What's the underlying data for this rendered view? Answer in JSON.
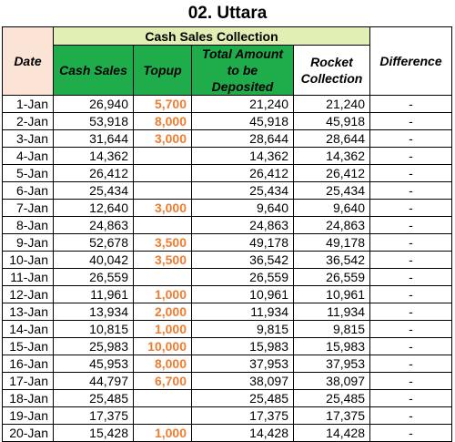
{
  "title": "02. Uttara",
  "headers": {
    "date": "Date",
    "group": "Cash Sales Collection",
    "cash_sales": "Cash Sales",
    "topup": "Topup",
    "total_amount": "Total Amount to be Deposited",
    "rocket": "Rocket Collection",
    "difference": "Difference"
  },
  "rows": [
    {
      "date": "1-Jan",
      "cash_sales": "26,940",
      "topup": "5,700",
      "total": "21,240",
      "rocket": "21,240",
      "diff": "-"
    },
    {
      "date": "2-Jan",
      "cash_sales": "53,918",
      "topup": "8,000",
      "total": "45,918",
      "rocket": "45,918",
      "diff": "-"
    },
    {
      "date": "3-Jan",
      "cash_sales": "31,644",
      "topup": "3,000",
      "total": "28,644",
      "rocket": "28,644",
      "diff": "-"
    },
    {
      "date": "4-Jan",
      "cash_sales": "14,362",
      "topup": "",
      "total": "14,362",
      "rocket": "14,362",
      "diff": "-"
    },
    {
      "date": "5-Jan",
      "cash_sales": "26,412",
      "topup": "",
      "total": "26,412",
      "rocket": "26,412",
      "diff": "-"
    },
    {
      "date": "6-Jan",
      "cash_sales": "25,434",
      "topup": "",
      "total": "25,434",
      "rocket": "25,434",
      "diff": "-"
    },
    {
      "date": "7-Jan",
      "cash_sales": "12,640",
      "topup": "3,000",
      "total": "9,640",
      "rocket": "9,640",
      "diff": "-"
    },
    {
      "date": "8-Jan",
      "cash_sales": "24,863",
      "topup": "",
      "total": "24,863",
      "rocket": "24,863",
      "diff": "-"
    },
    {
      "date": "9-Jan",
      "cash_sales": "52,678",
      "topup": "3,500",
      "total": "49,178",
      "rocket": "49,178",
      "diff": "-"
    },
    {
      "date": "10-Jan",
      "cash_sales": "40,042",
      "topup": "3,500",
      "total": "36,542",
      "rocket": "36,542",
      "diff": "-"
    },
    {
      "date": "11-Jan",
      "cash_sales": "26,559",
      "topup": "",
      "total": "26,559",
      "rocket": "26,559",
      "diff": "-"
    },
    {
      "date": "12-Jan",
      "cash_sales": "11,961",
      "topup": "1,000",
      "total": "10,961",
      "rocket": "10,961",
      "diff": "-"
    },
    {
      "date": "13-Jan",
      "cash_sales": "13,934",
      "topup": "2,000",
      "total": "11,934",
      "rocket": "11,934",
      "diff": "-"
    },
    {
      "date": "14-Jan",
      "cash_sales": "10,815",
      "topup": "1,000",
      "total": "9,815",
      "rocket": "9,815",
      "diff": "-"
    },
    {
      "date": "15-Jan",
      "cash_sales": "25,983",
      "topup": "10,000",
      "total": "15,983",
      "rocket": "15,983",
      "diff": "-"
    },
    {
      "date": "16-Jan",
      "cash_sales": "45,953",
      "topup": "8,000",
      "total": "37,953",
      "rocket": "37,953",
      "diff": "-"
    },
    {
      "date": "17-Jan",
      "cash_sales": "44,797",
      "topup": "6,700",
      "total": "38,097",
      "rocket": "38,097",
      "diff": "-"
    },
    {
      "date": "18-Jan",
      "cash_sales": "25,485",
      "topup": "",
      "total": "25,485",
      "rocket": "25,485",
      "diff": "-"
    },
    {
      "date": "19-Jan",
      "cash_sales": "17,375",
      "topup": "",
      "total": "17,375",
      "rocket": "17,375",
      "diff": "-"
    },
    {
      "date": "20-Jan",
      "cash_sales": "15,428",
      "topup": "1,000",
      "total": "14,428",
      "rocket": "14,428",
      "diff": "-"
    }
  ],
  "colors": {
    "date_header_bg": "#fbe4d5",
    "group_header_bg": "#e2efb4",
    "column_header_bg": "#1fad4b",
    "topup_text": "#ed7d31"
  }
}
